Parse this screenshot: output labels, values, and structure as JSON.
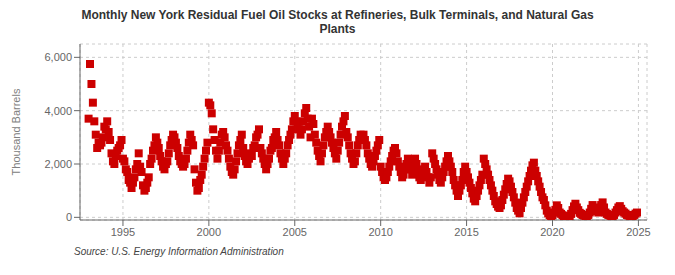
{
  "chart_data": {
    "type": "scatter",
    "title": "Monthly New York Residual Fuel Oil Stocks at Refineries, Bulk Terminals, and Natural Gas\nPlants",
    "ylabel": "Thousand Barrels",
    "annotations": [
      "Source: U.S. Energy Information Administration"
    ],
    "color": "#CC0000",
    "marker": "square",
    "grid": true,
    "xlim": [
      1992.5,
      2025.5
    ],
    "ylim": [
      -100,
      6500
    ],
    "xticks": [
      1995,
      2000,
      2005,
      2010,
      2015,
      2020,
      2025
    ],
    "yticks": [
      0,
      {
        "value": 2000,
        "label": "2,000"
      },
      {
        "value": 4000,
        "label": "4,000"
      },
      {
        "value": 6000,
        "label": "6,000"
      }
    ],
    "x": [
      1993,
      1993.083,
      1993.167,
      1993.25,
      1993.333,
      1993.417,
      1993.5,
      1993.583,
      1993.667,
      1993.75,
      1993.833,
      1993.917,
      1994,
      1994.083,
      1994.167,
      1994.25,
      1994.333,
      1994.417,
      1994.5,
      1994.583,
      1994.667,
      1994.75,
      1994.833,
      1994.917,
      1995,
      1995.083,
      1995.167,
      1995.25,
      1995.333,
      1995.417,
      1995.5,
      1995.583,
      1995.667,
      1995.75,
      1995.833,
      1995.917,
      1996,
      1996.083,
      1996.167,
      1996.25,
      1996.333,
      1996.417,
      1996.5,
      1996.583,
      1996.667,
      1996.75,
      1996.833,
      1996.917,
      1997,
      1997.083,
      1997.167,
      1997.25,
      1997.333,
      1997.417,
      1997.5,
      1997.583,
      1997.667,
      1997.75,
      1997.833,
      1997.917,
      1998,
      1998.083,
      1998.167,
      1998.25,
      1998.333,
      1998.417,
      1998.5,
      1998.583,
      1998.667,
      1998.75,
      1998.833,
      1998.917,
      1999,
      1999.083,
      1999.167,
      1999.25,
      1999.333,
      1999.417,
      1999.5,
      1999.583,
      1999.667,
      1999.75,
      1999.833,
      1999.917,
      2000,
      2000.083,
      2000.167,
      2000.25,
      2000.333,
      2000.417,
      2000.5,
      2000.583,
      2000.667,
      2000.75,
      2000.833,
      2000.917,
      2001,
      2001.083,
      2001.167,
      2001.25,
      2001.333,
      2001.417,
      2001.5,
      2001.583,
      2001.667,
      2001.75,
      2001.833,
      2001.917,
      2002,
      2002.083,
      2002.167,
      2002.25,
      2002.333,
      2002.417,
      2002.5,
      2002.583,
      2002.667,
      2002.75,
      2002.833,
      2002.917,
      2003,
      2003.083,
      2003.167,
      2003.25,
      2003.333,
      2003.417,
      2003.5,
      2003.583,
      2003.667,
      2003.75,
      2003.833,
      2003.917,
      2004,
      2004.083,
      2004.167,
      2004.25,
      2004.333,
      2004.417,
      2004.5,
      2004.583,
      2004.667,
      2004.75,
      2004.833,
      2004.917,
      2005,
      2005.083,
      2005.167,
      2005.25,
      2005.333,
      2005.417,
      2005.5,
      2005.583,
      2005.667,
      2005.75,
      2005.833,
      2005.917,
      2006,
      2006.083,
      2006.167,
      2006.25,
      2006.333,
      2006.417,
      2006.5,
      2006.583,
      2006.667,
      2006.75,
      2006.833,
      2006.917,
      2007,
      2007.083,
      2007.167,
      2007.25,
      2007.333,
      2007.417,
      2007.5,
      2007.583,
      2007.667,
      2007.75,
      2007.833,
      2007.917,
      2008,
      2008.083,
      2008.167,
      2008.25,
      2008.333,
      2008.417,
      2008.5,
      2008.583,
      2008.667,
      2008.75,
      2008.833,
      2008.917,
      2009,
      2009.083,
      2009.167,
      2009.25,
      2009.333,
      2009.417,
      2009.5,
      2009.583,
      2009.667,
      2009.75,
      2009.833,
      2009.917,
      2010,
      2010.083,
      2010.167,
      2010.25,
      2010.333,
      2010.417,
      2010.5,
      2010.583,
      2010.667,
      2010.75,
      2010.833,
      2010.917,
      2011,
      2011.083,
      2011.167,
      2011.25,
      2011.333,
      2011.417,
      2011.5,
      2011.583,
      2011.667,
      2011.75,
      2011.833,
      2011.917,
      2012,
      2012.083,
      2012.167,
      2012.25,
      2012.333,
      2012.417,
      2012.5,
      2012.583,
      2012.667,
      2012.75,
      2012.833,
      2012.917,
      2013,
      2013.083,
      2013.167,
      2013.25,
      2013.333,
      2013.417,
      2013.5,
      2013.583,
      2013.667,
      2013.75,
      2013.833,
      2013.917,
      2014,
      2014.083,
      2014.167,
      2014.25,
      2014.333,
      2014.417,
      2014.5,
      2014.583,
      2014.667,
      2014.75,
      2014.833,
      2014.917,
      2015,
      2015.083,
      2015.167,
      2015.25,
      2015.333,
      2015.417,
      2015.5,
      2015.583,
      2015.667,
      2015.75,
      2015.833,
      2015.917,
      2016,
      2016.083,
      2016.167,
      2016.25,
      2016.333,
      2016.417,
      2016.5,
      2016.583,
      2016.667,
      2016.75,
      2016.833,
      2016.917,
      2017,
      2017.083,
      2017.167,
      2017.25,
      2017.333,
      2017.417,
      2017.5,
      2017.583,
      2017.667,
      2017.75,
      2017.833,
      2017.917,
      2018,
      2018.083,
      2018.167,
      2018.25,
      2018.333,
      2018.417,
      2018.5,
      2018.583,
      2018.667,
      2018.75,
      2018.833,
      2018.917,
      2019,
      2019.083,
      2019.167,
      2019.25,
      2019.333,
      2019.417,
      2019.5,
      2019.583,
      2019.667,
      2019.75,
      2019.833,
      2019.917,
      2020,
      2020.083,
      2020.167,
      2020.25,
      2020.333,
      2020.417,
      2020.5,
      2020.583,
      2020.667,
      2020.75,
      2020.833,
      2020.917,
      2021,
      2021.083,
      2021.167,
      2021.25,
      2021.333,
      2021.417,
      2021.5,
      2021.583,
      2021.667,
      2021.75,
      2021.833,
      2021.917,
      2022,
      2022.083,
      2022.167,
      2022.25,
      2022.333,
      2022.417,
      2022.5,
      2022.583,
      2022.667,
      2022.75,
      2022.833,
      2022.917,
      2023,
      2023.083,
      2023.167,
      2023.25,
      2023.333,
      2023.417,
      2023.5,
      2023.583,
      2023.667,
      2023.75,
      2023.833,
      2023.917,
      2024,
      2024.083,
      2024.167,
      2024.25,
      2024.333,
      2024.417,
      2024.5,
      2024.583,
      2024.667,
      2024.75,
      2024.833,
      2024.917
    ],
    "values": [
      3700,
      5750,
      5000,
      4300,
      3600,
      3100,
      2600,
      2800,
      2700,
      2800,
      3000,
      3400,
      3300,
      3600,
      3200,
      2900,
      2400,
      2100,
      2000,
      2300,
      2500,
      2600,
      2700,
      2900,
      2200,
      2100,
      1800,
      1700,
      1400,
      1300,
      1100,
      1300,
      1500,
      1800,
      2000,
      2400,
      1900,
      1700,
      1200,
      1000,
      1100,
      1300,
      1500,
      2000,
      2200,
      2500,
      2700,
      3000,
      2800,
      2600,
      2300,
      2100,
      1900,
      1800,
      2000,
      2100,
      2400,
      2700,
      2900,
      3100,
      3000,
      2800,
      2600,
      2300,
      2100,
      2000,
      1900,
      2000,
      2200,
      2500,
      2800,
      3100,
      2900,
      2700,
      1800,
      1300,
      1000,
      1100,
      1400,
      1600,
      1900,
      2200,
      2500,
      2800,
      4300,
      4200,
      3900,
      3300,
      2900,
      2500,
      2200,
      2500,
      2800,
      3100,
      3200,
      3000,
      2700,
      2500,
      2200,
      1900,
      1700,
      1600,
      1800,
      2100,
      2400,
      2700,
      2900,
      3100,
      2600,
      2300,
      2100,
      2000,
      2200,
      2400,
      2300,
      2600,
      2700,
      3000,
      3100,
      3300,
      2600,
      2400,
      2200,
      2000,
      1800,
      2000,
      2200,
      2500,
      2600,
      2900,
      3000,
      3200,
      2900,
      2700,
      2400,
      2200,
      2000,
      2200,
      2400,
      2700,
      2900,
      3100,
      3300,
      3600,
      3800,
      3600,
      3500,
      3300,
      3100,
      3300,
      3600,
      3900,
      4100,
      3700,
      3400,
      3000,
      3700,
      3500,
      3100,
      2800,
      2500,
      2300,
      2100,
      2400,
      2700,
      3000,
      3200,
      3400,
      3200,
      3000,
      2800,
      2600,
      2400,
      2200,
      2500,
      2800,
      3100,
      3400,
      3600,
      3800,
      3200,
      3000,
      2700,
      2400,
      2200,
      2000,
      2100,
      2400,
      2700,
      2900,
      3100,
      3000,
      3100,
      2900,
      2700,
      2400,
      2200,
      2000,
      1900,
      2100,
      2300,
      2500,
      2700,
      2900,
      1900,
      1700,
      1500,
      1400,
      1500,
      1700,
      1900,
      2100,
      2300,
      2500,
      2600,
      2400,
      2100,
      1900,
      1700,
      1500,
      1600,
      1800,
      2000,
      2200,
      2000,
      1800,
      1600,
      1900,
      2200,
      2000,
      1700,
      1500,
      1400,
      1600,
      1800,
      1900,
      1700,
      1500,
      1300,
      1500,
      2400,
      2200,
      2000,
      1800,
      1600,
      1400,
      1300,
      1500,
      1700,
      1900,
      2100,
      2300,
      2100,
      1900,
      1700,
      1400,
      1200,
      1000,
      800,
      1000,
      1200,
      1400,
      1700,
      1900,
      1700,
      1500,
      1300,
      1100,
      900,
      700,
      600,
      800,
      1000,
      1200,
      1400,
      1600,
      2200,
      2000,
      1800,
      1600,
      1400,
      1200,
      1000,
      800,
      600,
      500,
      400,
      350,
      450,
      650,
      850,
      1050,
      1250,
      1450,
      1350,
      1150,
      950,
      750,
      550,
      350,
      250,
      150,
      350,
      550,
      750,
      950,
      1150,
      1350,
      1550,
      1750,
      1950,
      2050,
      1750,
      1550,
      1350,
      1150,
      950,
      750,
      650,
      450,
      250,
      150,
      80,
      40,
      80,
      180,
      280,
      450,
      350,
      180,
      130,
      80,
      40,
      25,
      15,
      25,
      40,
      130,
      270,
      410,
      510,
      370,
      270,
      170,
      130,
      90,
      70,
      40,
      25,
      90,
      180,
      320,
      460,
      370,
      280,
      230,
      180,
      320,
      460,
      560,
      370,
      180,
      130,
      90,
      70,
      50,
      40,
      90,
      180,
      270,
      370,
      420,
      320,
      230,
      180,
      140,
      90,
      70,
      55,
      45,
      35,
      90,
      140,
      180
    ]
  }
}
